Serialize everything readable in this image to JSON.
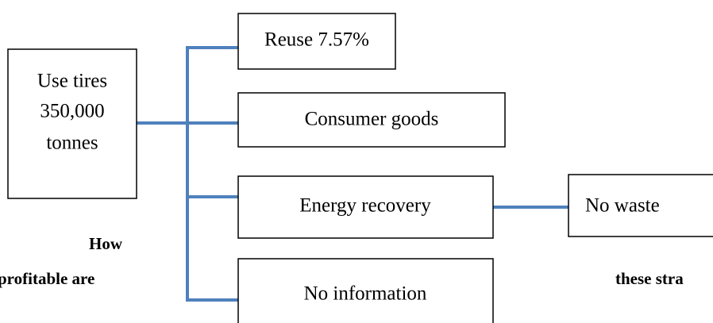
{
  "nodes": [
    {
      "label": [
        "Use tires",
        "350,000",
        "tonnes"
      ]
    },
    {
      "label": "Reuse 7.57%"
    },
    {
      "label": "Consumer goods"
    },
    {
      "label": "Energy recovery"
    },
    {
      "label": "No waste"
    },
    {
      "label": "No information"
    }
  ],
  "body_text": [
    "How",
    "profitable are",
    "these stra"
  ]
}
